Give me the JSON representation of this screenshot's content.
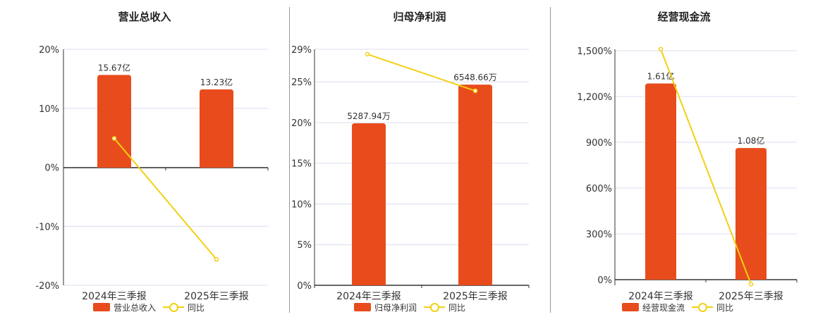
{
  "colors": {
    "bar": "#e84c1c",
    "line": "#f2d013",
    "axis": "#333333",
    "grid": "#dcdcf0"
  },
  "chart_data": [
    {
      "type": "bar",
      "title": "营业总收入",
      "categories": [
        "2024年三季报",
        "2025年三季报"
      ],
      "bar_series": {
        "name": "营业总收入",
        "values": [
          15.67,
          13.23
        ],
        "labels": [
          "15.67亿",
          "13.23亿"
        ]
      },
      "line_series": {
        "name": "同比",
        "values": [
          4.9,
          -15.6
        ]
      },
      "yticks": [
        "20%",
        "10%",
        "0%",
        "-10%",
        "-20%"
      ],
      "ylim": [
        -20,
        20
      ],
      "bar_max": 20
    },
    {
      "type": "bar",
      "title": "归母净利润",
      "categories": [
        "2024年三季报",
        "2025年三季报"
      ],
      "bar_series": {
        "name": "归母净利润",
        "values": [
          5287.94,
          6548.66
        ],
        "labels": [
          "5287.94万",
          "6548.66万"
        ]
      },
      "line_series": {
        "name": "同比",
        "values": [
          28.4,
          23.9
        ]
      },
      "yticks": [
        "29%",
        "25%",
        "20%",
        "15%",
        "10%",
        "5%",
        "0%"
      ],
      "ylim": [
        0,
        29
      ],
      "bar_max": 7700
    },
    {
      "type": "bar",
      "title": "经营现金流",
      "categories": [
        "2024年三季报",
        "2025年三季报"
      ],
      "bar_series": {
        "name": "经营现金流",
        "values": [
          1.61,
          1.08
        ],
        "labels": [
          "1.61亿",
          "1.08亿"
        ]
      },
      "line_series": {
        "name": "同比",
        "values": [
          1510,
          -30
        ]
      },
      "yticks": [
        "1,500%",
        "1,200%",
        "900%",
        "600%",
        "300%",
        "0%"
      ],
      "ylim": [
        0,
        1500
      ],
      "bar_max": 1.89
    }
  ]
}
